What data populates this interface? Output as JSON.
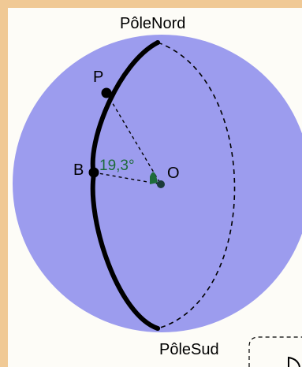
{
  "labels": {
    "north_pole": "PôleNord",
    "south_pole": "PôleSud",
    "point_p": "P",
    "point_b": "B",
    "center": "O",
    "angle": "19,3°"
  },
  "colors": {
    "frame": "#f0c995",
    "panel": "#fdfcf7",
    "sphere": "#9c9cee",
    "meridian": "#000000",
    "angle": "#1e6b3a",
    "text": "#000000"
  }
}
